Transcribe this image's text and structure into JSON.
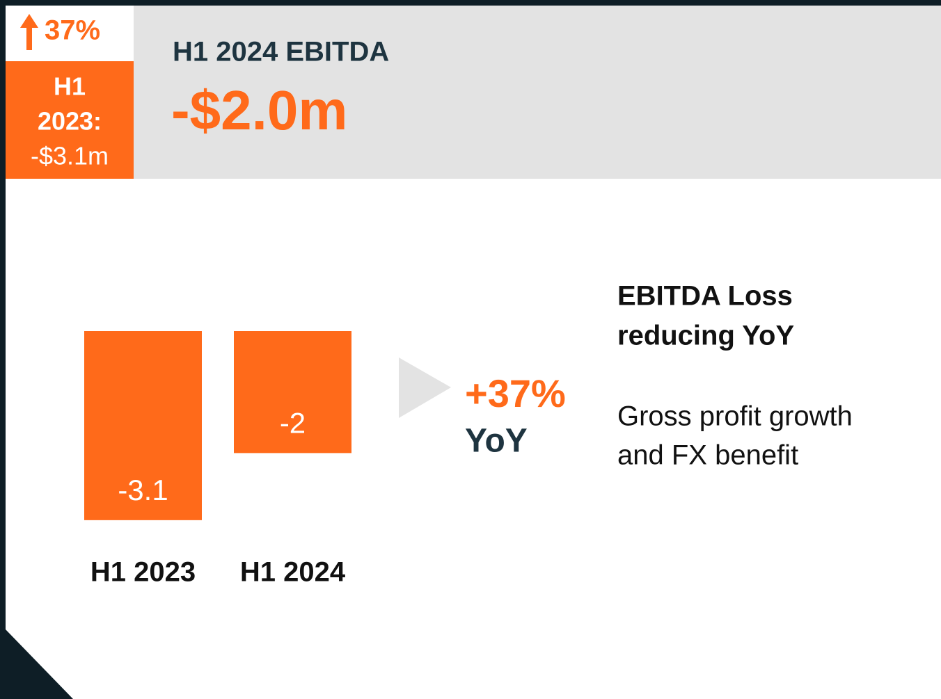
{
  "badge": {
    "change": "37%",
    "label": [
      "H1",
      "2023:",
      "-$3.1m"
    ]
  },
  "header": {
    "title": "H1 2024 EBITDA",
    "value": "-$2.0m"
  },
  "chart_data": {
    "type": "bar",
    "categories": [
      "H1 2023",
      "H1 2024"
    ],
    "values": [
      -3.1,
      -2
    ],
    "color": "#ff6a1a"
  },
  "callout": {
    "change": "+37%",
    "unit": "YoY"
  },
  "notes": {
    "heading": [
      "EBITDA Loss",
      "reducing YoY"
    ],
    "body": [
      "Gross profit growth",
      "and FX benefit"
    ]
  }
}
